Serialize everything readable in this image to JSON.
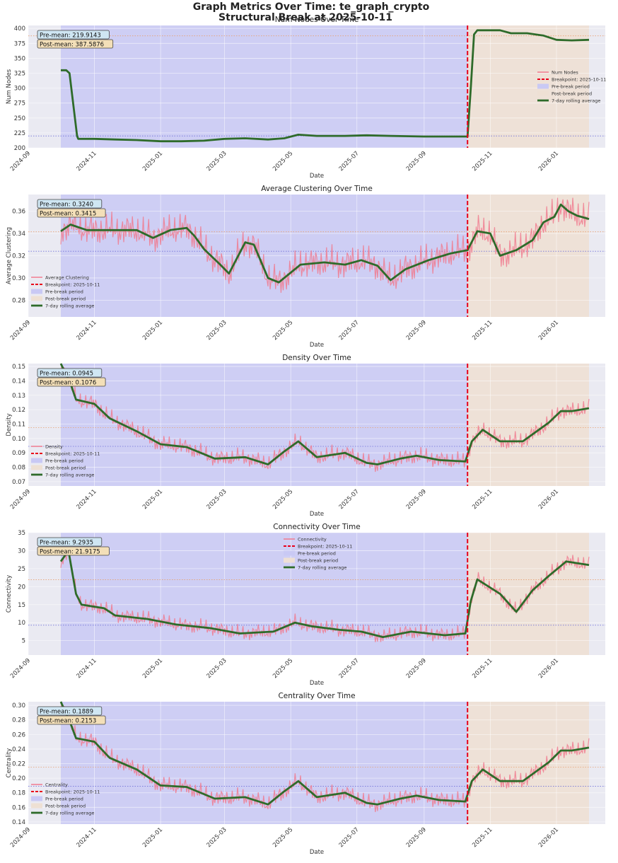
{
  "suptitle": {
    "line1": "Graph Metrics Over Time: te_graph_crypto",
    "line2": "Structural Break at 2025-10-11"
  },
  "colors": {
    "raw": "#f07b8f",
    "rolling": "#2e6b2a",
    "breakpoint": "#e8001a",
    "pre_fill": "#c9c9f4",
    "post_fill": "#eee0d4",
    "plot_bg": "#eaeaf2",
    "pre_mean_box": "#cfe6f3",
    "post_mean_box": "#f3dfb8",
    "pre_mean_line": "#7070d8",
    "post_mean_line": "#e8a070"
  },
  "x_axis": {
    "label": "Date",
    "start": "2024-09-01",
    "end": "2026-02-15",
    "ticks": [
      "2024-09",
      "2024-11",
      "2025-01",
      "2025-03",
      "2025-05",
      "2025-07",
      "2025-09",
      "2025-11",
      "2026-01"
    ]
  },
  "periods": {
    "data_start": "2024-10-01",
    "break": "2025-10-11",
    "data_end": "2026-01-31"
  },
  "legend_labels": {
    "breakpoint": "Breakpoint: 2025-10-11",
    "pre": "Pre-break period",
    "post": "Post-break period",
    "rolling": "7-day rolling average"
  },
  "chart_data": [
    {
      "type": "line",
      "title": "Num Nodes Over Time",
      "xlabel": "Date",
      "ylabel": "Num Nodes",
      "ylim": [
        200,
        405
      ],
      "yticks": [
        "200",
        "225",
        "250",
        "275",
        "300",
        "325",
        "350",
        "375",
        "400"
      ],
      "legend_position": "center-right",
      "series_label": "Num Nodes",
      "pre_mean": 219.9143,
      "post_mean": 387.5876,
      "pre_mean_label": "Pre-mean: 219.9143",
      "post_mean_label": "Post-mean: 387.5876",
      "noise": 0,
      "rolling": [
        [
          "2024-10-01",
          330
        ],
        [
          "2024-10-06",
          330
        ],
        [
          "2024-10-09",
          325
        ],
        [
          "2024-10-16",
          220
        ],
        [
          "2024-10-17",
          215
        ],
        [
          "2024-11-01",
          215
        ],
        [
          "2024-11-20",
          214
        ],
        [
          "2024-12-10",
          213
        ],
        [
          "2025-01-01",
          211
        ],
        [
          "2025-01-20",
          211
        ],
        [
          "2025-02-10",
          212
        ],
        [
          "2025-03-01",
          215
        ],
        [
          "2025-03-20",
          216
        ],
        [
          "2025-04-10",
          214
        ],
        [
          "2025-04-25",
          216
        ],
        [
          "2025-05-08",
          222
        ],
        [
          "2025-05-25",
          220
        ],
        [
          "2025-06-20",
          220
        ],
        [
          "2025-07-10",
          221
        ],
        [
          "2025-08-01",
          220
        ],
        [
          "2025-09-01",
          219
        ],
        [
          "2025-10-09",
          219
        ],
        [
          "2025-10-11",
          219
        ],
        [
          "2025-10-14",
          300
        ],
        [
          "2025-10-17",
          390
        ],
        [
          "2025-10-20",
          397
        ],
        [
          "2025-11-10",
          397
        ],
        [
          "2025-11-20",
          392
        ],
        [
          "2025-12-05",
          392
        ],
        [
          "2025-12-20",
          388
        ],
        [
          "2026-01-01",
          381
        ],
        [
          "2026-01-15",
          380
        ],
        [
          "2026-01-31",
          381
        ]
      ]
    },
    {
      "type": "line",
      "title": "Average Clustering Over Time",
      "xlabel": "Date",
      "ylabel": "Average Clustering",
      "ylim": [
        0.265,
        0.375
      ],
      "yticks": [
        "0.28",
        "0.30",
        "0.32",
        "0.34",
        "0.36"
      ],
      "legend_position": "lower-left",
      "series_label": "Average Clustering",
      "pre_mean": 0.324,
      "post_mean": 0.3415,
      "pre_mean_label": "Pre-mean: 0.3240",
      "post_mean_label": "Post-mean: 0.3415",
      "noise": 0.012,
      "rolling": [
        [
          "2024-10-01",
          0.342
        ],
        [
          "2024-10-10",
          0.348
        ],
        [
          "2024-10-25",
          0.343
        ],
        [
          "2024-11-10",
          0.343
        ],
        [
          "2024-12-10",
          0.343
        ],
        [
          "2024-12-25",
          0.336
        ],
        [
          "2025-01-10",
          0.343
        ],
        [
          "2025-01-25",
          0.345
        ],
        [
          "2025-02-01",
          0.338
        ],
        [
          "2025-02-10",
          0.326
        ],
        [
          "2025-02-25",
          0.312
        ],
        [
          "2025-03-05",
          0.304
        ],
        [
          "2025-03-20",
          0.332
        ],
        [
          "2025-03-28",
          0.33
        ],
        [
          "2025-04-10",
          0.3
        ],
        [
          "2025-04-20",
          0.296
        ],
        [
          "2025-05-10",
          0.312
        ],
        [
          "2025-06-01",
          0.314
        ],
        [
          "2025-06-20",
          0.312
        ],
        [
          "2025-07-05",
          0.316
        ],
        [
          "2025-07-20",
          0.311
        ],
        [
          "2025-08-01",
          0.298
        ],
        [
          "2025-08-15",
          0.308
        ],
        [
          "2025-09-05",
          0.316
        ],
        [
          "2025-09-25",
          0.322
        ],
        [
          "2025-10-11",
          0.325
        ],
        [
          "2025-10-20",
          0.342
        ],
        [
          "2025-11-01",
          0.34
        ],
        [
          "2025-11-10",
          0.32
        ],
        [
          "2025-11-25",
          0.325
        ],
        [
          "2025-12-10",
          0.334
        ],
        [
          "2025-12-20",
          0.35
        ],
        [
          "2025-12-30",
          0.355
        ],
        [
          "2026-01-05",
          0.366
        ],
        [
          "2026-01-12",
          0.36
        ],
        [
          "2026-01-20",
          0.356
        ],
        [
          "2026-01-31",
          0.353
        ]
      ]
    },
    {
      "type": "line",
      "title": "Density Over Time",
      "xlabel": "Date",
      "ylabel": "Density",
      "ylim": [
        0.067,
        0.152
      ],
      "yticks": [
        "0.07",
        "0.08",
        "0.09",
        "0.10",
        "0.11",
        "0.12",
        "0.13",
        "0.14",
        "0.15"
      ],
      "legend_position": "lower-left",
      "series_label": "Density",
      "pre_mean": 0.0945,
      "post_mean": 0.1076,
      "pre_mean_label": "Pre-mean: 0.0945",
      "post_mean_label": "Post-mean: 0.1076",
      "noise": 0.005,
      "rolling": [
        [
          "2024-10-01",
          0.152
        ],
        [
          "2024-10-10",
          0.138
        ],
        [
          "2024-10-15",
          0.127
        ],
        [
          "2024-11-01",
          0.124
        ],
        [
          "2024-11-15",
          0.114
        ],
        [
          "2024-12-10",
          0.105
        ],
        [
          "2025-01-01",
          0.096
        ],
        [
          "2025-01-25",
          0.094
        ],
        [
          "2025-02-20",
          0.086
        ],
        [
          "2025-03-20",
          0.087
        ],
        [
          "2025-04-10",
          0.082
        ],
        [
          "2025-04-25",
          0.091
        ],
        [
          "2025-05-08",
          0.098
        ],
        [
          "2025-05-25",
          0.087
        ],
        [
          "2025-06-20",
          0.09
        ],
        [
          "2025-07-10",
          0.083
        ],
        [
          "2025-07-20",
          0.082
        ],
        [
          "2025-08-10",
          0.086
        ],
        [
          "2025-08-25",
          0.088
        ],
        [
          "2025-09-15",
          0.085
        ],
        [
          "2025-10-09",
          0.084
        ],
        [
          "2025-10-15",
          0.098
        ],
        [
          "2025-10-25",
          0.106
        ],
        [
          "2025-11-10",
          0.098
        ],
        [
          "2025-12-01",
          0.098
        ],
        [
          "2025-12-25",
          0.111
        ],
        [
          "2026-01-05",
          0.119
        ],
        [
          "2026-01-15",
          0.119
        ],
        [
          "2026-01-31",
          0.121
        ]
      ]
    },
    {
      "type": "line",
      "title": "Connectivity Over Time",
      "xlabel": "Date",
      "ylabel": "Connectivity",
      "ylim": [
        1,
        35
      ],
      "yticks": [
        "5",
        "10",
        "15",
        "20",
        "25",
        "30",
        "35"
      ],
      "legend_position": "top-center",
      "series_label": "Connectivity",
      "pre_mean": 9.2935,
      "post_mean": 21.9175,
      "pre_mean_label": "Pre-mean: 9.2935",
      "post_mean_label": "Post-mean: 21.9175",
      "noise": 1.8,
      "rolling": [
        [
          "2024-10-01",
          27
        ],
        [
          "2024-10-08",
          30
        ],
        [
          "2024-10-15",
          18
        ],
        [
          "2024-10-20",
          15
        ],
        [
          "2024-11-10",
          14
        ],
        [
          "2024-11-20",
          12
        ],
        [
          "2024-12-20",
          11
        ],
        [
          "2025-01-15",
          9.5
        ],
        [
          "2025-02-15",
          8.5
        ],
        [
          "2025-03-15",
          7
        ],
        [
          "2025-04-15",
          7.5
        ],
        [
          "2025-05-05",
          10
        ],
        [
          "2025-05-20",
          9
        ],
        [
          "2025-06-15",
          8
        ],
        [
          "2025-07-05",
          7.5
        ],
        [
          "2025-07-25",
          6
        ],
        [
          "2025-08-20",
          7.5
        ],
        [
          "2025-09-20",
          6.5
        ],
        [
          "2025-10-09",
          7
        ],
        [
          "2025-10-14",
          16
        ],
        [
          "2025-10-20",
          22
        ],
        [
          "2025-11-10",
          18
        ],
        [
          "2025-11-25",
          13
        ],
        [
          "2025-12-10",
          19
        ],
        [
          "2025-12-25",
          23
        ],
        [
          "2026-01-10",
          27
        ],
        [
          "2026-01-31",
          26
        ]
      ]
    },
    {
      "type": "line",
      "title": "Centrality Over Time",
      "xlabel": "Date",
      "ylabel": "Centrality",
      "ylim": [
        0.137,
        0.305
      ],
      "yticks": [
        "0.14",
        "0.16",
        "0.18",
        "0.20",
        "0.22",
        "0.24",
        "0.26",
        "0.28",
        "0.30"
      ],
      "legend_position": "lower-left",
      "series_label": "Centrality",
      "pre_mean": 0.1889,
      "post_mean": 0.2153,
      "pre_mean_label": "Pre-mean: 0.1889",
      "post_mean_label": "Post-mean: 0.2153",
      "noise": 0.01,
      "rolling": [
        [
          "2024-10-01",
          0.305
        ],
        [
          "2024-10-10",
          0.275
        ],
        [
          "2024-10-15",
          0.255
        ],
        [
          "2024-11-01",
          0.25
        ],
        [
          "2024-11-15",
          0.228
        ],
        [
          "2024-12-10",
          0.212
        ],
        [
          "2025-01-01",
          0.19
        ],
        [
          "2025-01-25",
          0.188
        ],
        [
          "2025-02-20",
          0.172
        ],
        [
          "2025-03-20",
          0.174
        ],
        [
          "2025-04-10",
          0.164
        ],
        [
          "2025-04-25",
          0.182
        ],
        [
          "2025-05-08",
          0.196
        ],
        [
          "2025-05-25",
          0.174
        ],
        [
          "2025-06-20",
          0.18
        ],
        [
          "2025-07-10",
          0.166
        ],
        [
          "2025-07-20",
          0.164
        ],
        [
          "2025-08-10",
          0.172
        ],
        [
          "2025-08-25",
          0.176
        ],
        [
          "2025-09-15",
          0.17
        ],
        [
          "2025-10-09",
          0.168
        ],
        [
          "2025-10-15",
          0.196
        ],
        [
          "2025-10-25",
          0.212
        ],
        [
          "2025-11-10",
          0.196
        ],
        [
          "2025-12-01",
          0.196
        ],
        [
          "2025-12-25",
          0.222
        ],
        [
          "2026-01-05",
          0.238
        ],
        [
          "2026-01-15",
          0.238
        ],
        [
          "2026-01-31",
          0.242
        ]
      ]
    }
  ]
}
